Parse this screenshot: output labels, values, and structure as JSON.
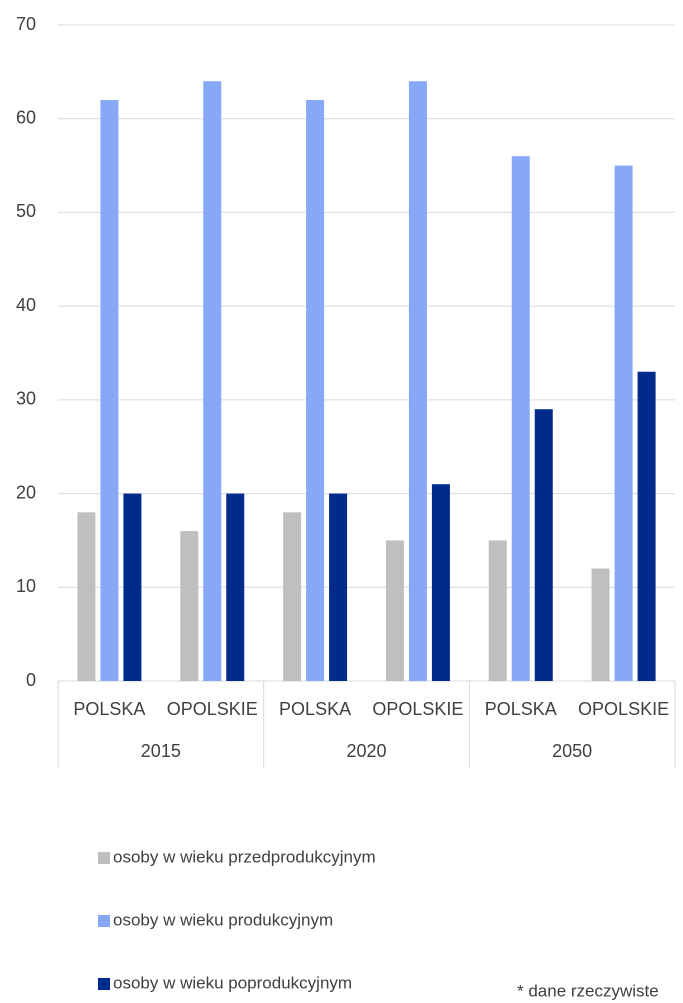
{
  "chart_data": {
    "type": "bar",
    "categories": [
      "POLSKA",
      "OPOLSKIE",
      "POLSKA",
      "OPOLSKIE",
      "POLSKA",
      "OPOLSKIE"
    ],
    "groups": [
      "2015",
      "2020",
      "2050"
    ],
    "series": [
      {
        "name": "osoby w wieku przedprodukcyjnym",
        "color": "#bfbfbf",
        "values": [
          18,
          16,
          18,
          15,
          15,
          12
        ]
      },
      {
        "name": "osoby w wieku produkcyjnym",
        "color": "#86a8f7",
        "values": [
          62,
          64,
          62,
          64,
          56,
          55
        ]
      },
      {
        "name": "osoby w wieku poprodukcyjnym",
        "color": "#002a8c",
        "values": [
          20,
          20,
          20,
          21,
          29,
          33
        ]
      }
    ],
    "ylim": [
      0,
      70
    ],
    "yticks": [
      0,
      10,
      20,
      30,
      40,
      50,
      60,
      70
    ],
    "grid": true,
    "legend": "bottom",
    "annotation": "* dane rzeczywiste"
  }
}
